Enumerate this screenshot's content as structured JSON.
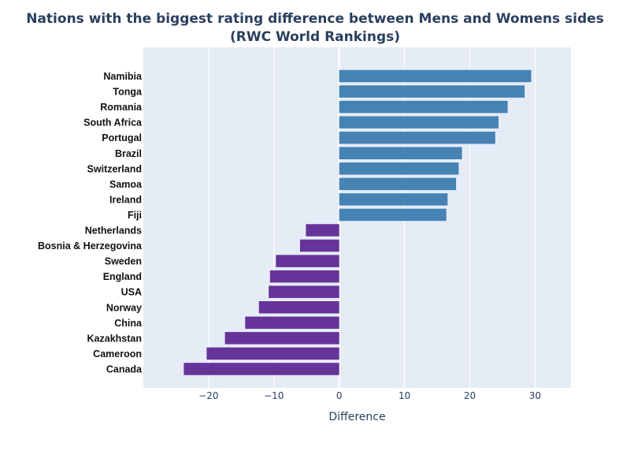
{
  "chart_data": {
    "type": "bar",
    "orientation": "horizontal",
    "title_lines": [
      "Nations with the biggest rating difference between Mens and Womens sides",
      "(RWC World Rankings)"
    ],
    "xlabel": "Difference",
    "ylabel": "",
    "xlim": [
      -30,
      35.5
    ],
    "xticks": [
      -20,
      -10,
      0,
      10,
      20,
      30
    ],
    "xtick_labels": [
      "−20",
      "−10",
      "0",
      "10",
      "20",
      "30"
    ],
    "grid": true,
    "categories": [
      "Namibia",
      "Tonga",
      "Romania",
      "South Africa",
      "Portugal",
      "Brazil",
      "Switzerland",
      "Samoa",
      "Ireland",
      "Fiji",
      "Netherlands",
      "Bosnia & Herzegovina",
      "Sweden",
      "England",
      "USA",
      "Norway",
      "China",
      "Kazakhstan",
      "Cameroon",
      "Canada"
    ],
    "values": [
      29.4,
      28.4,
      25.8,
      24.4,
      23.9,
      18.8,
      18.3,
      17.9,
      16.6,
      16.4,
      -5.1,
      -6.0,
      -9.7,
      -10.6,
      -10.8,
      -12.3,
      -14.4,
      -17.5,
      -20.3,
      -23.8
    ],
    "colors": {
      "positive": "#4682b4",
      "negative": "#663399",
      "plot_bg": "#e5ecf6",
      "grid": "#ffffff"
    }
  }
}
